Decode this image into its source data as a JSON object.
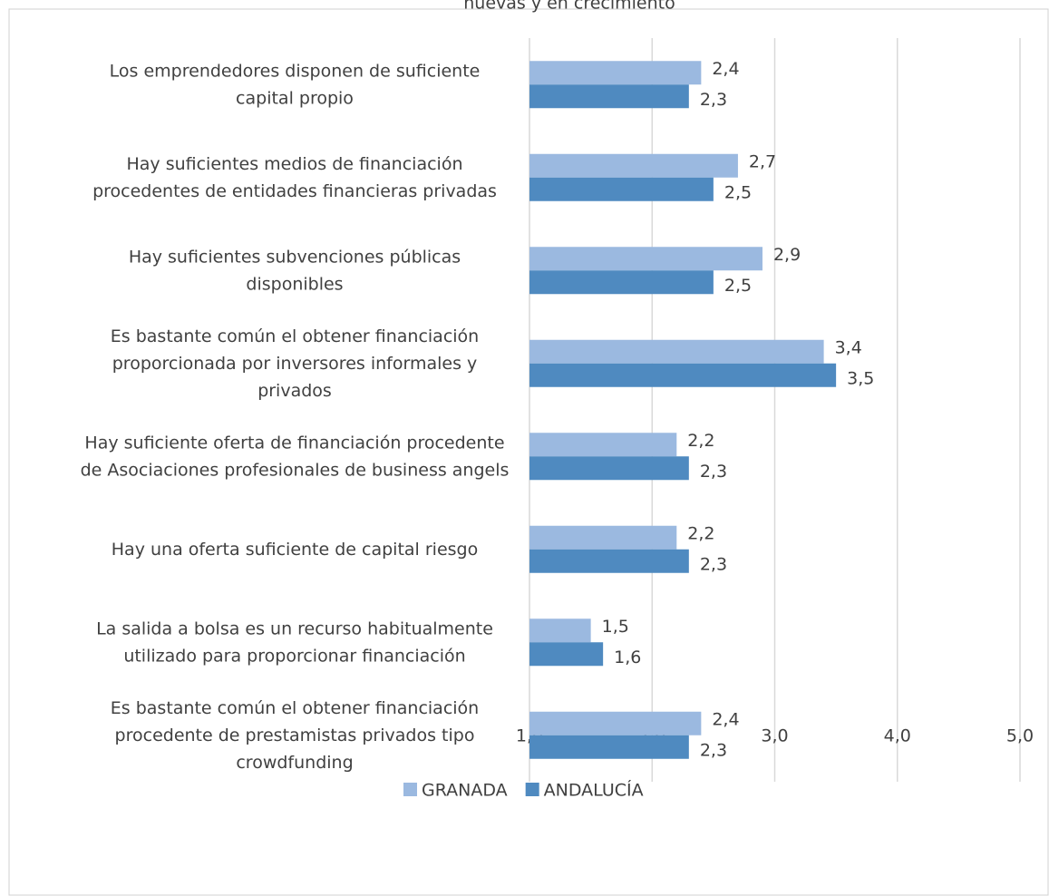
{
  "chart_data": {
    "type": "hbar",
    "title": "nuevas y en crecimiento",
    "categories": [
      "Los emprendedores disponen de suficiente\ncapital propio",
      "Hay suficientes medios de financiación\nprocedentes de entidades financieras privadas",
      "Hay suficientes subvenciones públicas\ndisponibles",
      "Es bastante común el obtener financiación\nproporcionada por inversores informales y\nprivados",
      "Hay suficiente oferta de financiación procedente\nde Asociaciones profesionales de business angels",
      "Hay una oferta suficiente de capital riesgo",
      "La salida a bolsa es un recurso habitualmente\nutilizado para proporcionar financiación",
      "Es bastante común el obtener financiación\nprocedente de prestamistas privados tipo\ncrowdfunding"
    ],
    "series": [
      {
        "name": "GRANADA",
        "color": "#9bb9e0",
        "values": [
          2.4,
          2.7,
          2.9,
          3.4,
          2.2,
          2.2,
          1.5,
          2.4
        ],
        "value_labels": [
          "2,4",
          "2,7",
          "2,9",
          "3,4",
          "2,2",
          "2,2",
          "1,5",
          "2,4"
        ]
      },
      {
        "name": "ANDALUCÍA",
        "color": "#4f8ac0",
        "values": [
          2.3,
          2.5,
          2.5,
          3.5,
          2.3,
          2.3,
          1.6,
          2.3
        ],
        "value_labels": [
          "2,3",
          "2,5",
          "2,5",
          "3,5",
          "2,3",
          "2,3",
          "1,6",
          "2,3"
        ]
      }
    ],
    "xlim": [
      1,
      5
    ],
    "xticks": [
      {
        "value": 1,
        "label": "1,0"
      },
      {
        "value": 2,
        "label": "2,0"
      },
      {
        "value": 3,
        "label": "3,0"
      },
      {
        "value": 4,
        "label": "4,0"
      },
      {
        "value": 5,
        "label": "5,0"
      }
    ],
    "grid": true,
    "legend": "bottom"
  }
}
